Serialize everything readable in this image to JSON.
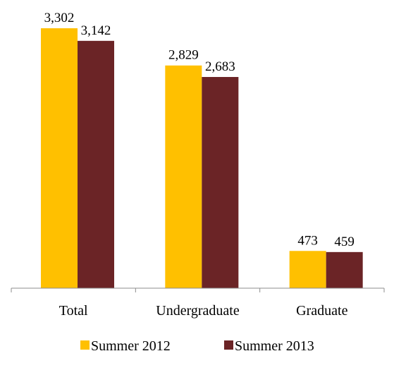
{
  "chart_data": {
    "type": "bar",
    "title": "",
    "xlabel": "",
    "ylabel": "",
    "categories": [
      "Total",
      "Undergraduate",
      "Graduate"
    ],
    "series": [
      {
        "name": "Summer 2012",
        "color": "#FFC000",
        "values": [
          3302,
          2829,
          473
        ],
        "labels": [
          "3,302",
          "2,829",
          "473"
        ]
      },
      {
        "name": "Summer 2013",
        "color": "#6B2426",
        "values": [
          3142,
          2683,
          459
        ],
        "labels": [
          "3,142",
          "2,683",
          "459"
        ]
      }
    ],
    "ylim": [
      0,
      3302
    ],
    "grid": false,
    "legend": "bottom"
  }
}
